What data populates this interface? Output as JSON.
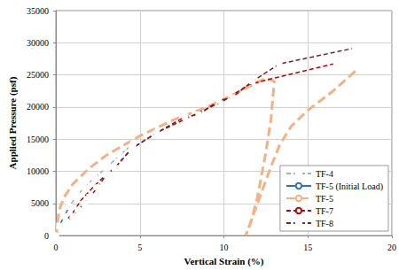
{
  "chart_data": {
    "type": "line",
    "x_label": "Vertical Strain (%)",
    "y_label": "Applied Pressure (psf)",
    "xlim": [
      0,
      20
    ],
    "xticks": [
      0,
      5,
      10,
      15,
      20
    ],
    "ylim": [
      0,
      35000
    ],
    "yticks": [
      0,
      5000,
      10000,
      15000,
      20000,
      25000,
      30000,
      35000
    ],
    "grid": true,
    "legend": "lower right",
    "series": [
      {
        "name": "TF-4",
        "color": "#9daad6",
        "marker": "square",
        "line_style": "dashed",
        "x": [
          0,
          0.2,
          0.5,
          0.8,
          1.2,
          1.7,
          2.3,
          3.0,
          3.8,
          4.6
        ],
        "values": [
          0,
          1500,
          3000,
          4500,
          6000,
          7500,
          9000,
          10500,
          12500,
          14300
        ]
      },
      {
        "name": "TF-5 (Initial Load)",
        "color": "#2e75b6",
        "marker": "none",
        "line_style": "solid",
        "x": [
          0,
          0.3,
          0.6,
          0.8
        ],
        "values": [
          0,
          2000,
          3500,
          4500
        ]
      },
      {
        "name": "TF-5",
        "color": "#f4b183",
        "marker": "none",
        "line_style": "long_dash",
        "x": [
          0,
          0.2,
          0.5,
          1.0,
          2.0,
          3.0,
          4.0,
          5.0,
          7.0,
          9.0,
          11.0,
          12.5,
          13.0,
          12.8,
          12.5,
          12.0,
          11.6,
          11.3,
          12.0,
          12.7,
          13.3,
          14.0,
          15.0,
          16.5,
          18.0
        ],
        "values": [
          0,
          4000,
          6000,
          8000,
          10500,
          12500,
          14000,
          15500,
          18000,
          20000,
          22500,
          24500,
          24000,
          18000,
          13000,
          6000,
          2000,
          0,
          5000,
          10000,
          14000,
          17000,
          19500,
          22500,
          26000
        ]
      },
      {
        "name": "TF-7",
        "color": "#c00000",
        "marker": "none",
        "line_style": "dashed",
        "x": [
          0,
          0.5,
          1.0,
          1.5,
          2.2,
          3.0,
          3.5,
          4.5,
          6.0,
          8.0,
          10.0,
          11.5,
          13.0,
          16.5
        ],
        "values": [
          0,
          2000,
          3500,
          5500,
          7500,
          9500,
          10500,
          13500,
          16000,
          18500,
          21000,
          23500,
          24500,
          26700
        ]
      },
      {
        "name": "TF-8",
        "color": "#7b1f1f",
        "marker": "square",
        "line_style": "dashed",
        "x": [
          0,
          0.3,
          0.6,
          1.0,
          1.3,
          1.7,
          2.0,
          2.5,
          3.0,
          3.5,
          4.5,
          6.0,
          7.7,
          8.5,
          9.7,
          10.5,
          11.7,
          13.3,
          17.8
        ],
        "values": [
          0,
          1000,
          2000,
          3000,
          4000,
          5000,
          6000,
          7500,
          9500,
          10500,
          13500,
          16000,
          18500,
          18800,
          21000,
          21500,
          24000,
          26700,
          29200
        ]
      }
    ]
  }
}
